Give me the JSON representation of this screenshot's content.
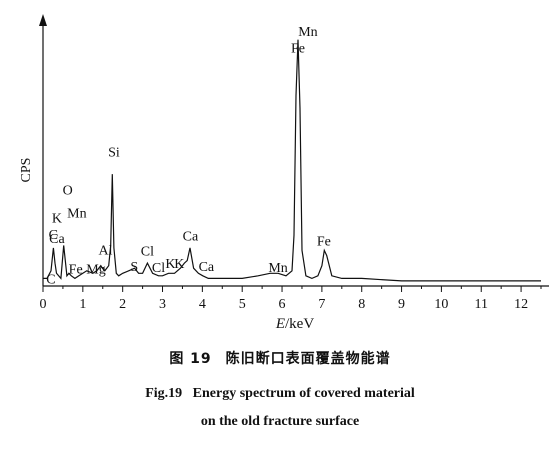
{
  "chart_data": {
    "type": "line",
    "ylabel": "CPS",
    "xlabel_italic": "E",
    "xlabel_unit": "/keV",
    "xlim": [
      0,
      12.5
    ],
    "ylim": [
      0,
      1
    ],
    "xticks": [
      0,
      1,
      2,
      3,
      4,
      5,
      6,
      7,
      8,
      9,
      10,
      11,
      12
    ],
    "grid": false,
    "series": [
      {
        "x": [
          0.0,
          0.1,
          0.2,
          0.26,
          0.3,
          0.34,
          0.45,
          0.52,
          0.56,
          0.6,
          0.65,
          0.71,
          0.8,
          0.9,
          1.0,
          1.1,
          1.25,
          1.35,
          1.45,
          1.49,
          1.55,
          1.65,
          1.7,
          1.74,
          1.78,
          1.84,
          1.9,
          2.0,
          2.15,
          2.3,
          2.4,
          2.5,
          2.62,
          2.75,
          2.9,
          3.0,
          3.15,
          3.3,
          3.45,
          3.55,
          3.62,
          3.69,
          3.78,
          3.9,
          4.01,
          4.15,
          4.3,
          4.6,
          5.0,
          5.4,
          5.7,
          5.9,
          6.1,
          6.25,
          6.3,
          6.35,
          6.4,
          6.45,
          6.5,
          6.6,
          6.75,
          6.9,
          7.0,
          7.06,
          7.12,
          7.25,
          7.5,
          8.0,
          9.0,
          10.0,
          11.0,
          12.0,
          12.5
        ],
        "values": [
          0.03,
          0.03,
          0.06,
          0.15,
          0.09,
          0.05,
          0.03,
          0.16,
          0.1,
          0.04,
          0.05,
          0.04,
          0.03,
          0.04,
          0.05,
          0.06,
          0.05,
          0.06,
          0.08,
          0.07,
          0.06,
          0.08,
          0.16,
          0.44,
          0.15,
          0.05,
          0.04,
          0.05,
          0.06,
          0.07,
          0.05,
          0.05,
          0.09,
          0.05,
          0.04,
          0.04,
          0.05,
          0.05,
          0.07,
          0.09,
          0.1,
          0.15,
          0.07,
          0.05,
          0.04,
          0.03,
          0.03,
          0.03,
          0.03,
          0.04,
          0.05,
          0.05,
          0.04,
          0.06,
          0.2,
          0.75,
          0.97,
          0.7,
          0.14,
          0.04,
          0.03,
          0.04,
          0.08,
          0.14,
          0.12,
          0.04,
          0.03,
          0.03,
          0.02,
          0.02,
          0.02,
          0.02,
          0.02
        ]
      }
    ],
    "peak_labels": [
      {
        "text": "C",
        "x": 0.26,
        "y": 0.185
      },
      {
        "text": "O",
        "x": 0.62,
        "y": 0.36
      },
      {
        "text": "K",
        "x": 0.35,
        "y": 0.25
      },
      {
        "text": "Ca",
        "x": 0.35,
        "y": 0.17
      },
      {
        "text": "C",
        "x": 0.2,
        "y": 0.01
      },
      {
        "text": "Mn",
        "x": 0.85,
        "y": 0.27
      },
      {
        "text": "Fe",
        "x": 0.82,
        "y": 0.05
      },
      {
        "text": "Mg",
        "x": 1.33,
        "y": 0.05
      },
      {
        "text": "Al",
        "x": 1.57,
        "y": 0.125
      },
      {
        "text": "Si",
        "x": 1.78,
        "y": 0.51
      },
      {
        "text": "S",
        "x": 2.29,
        "y": 0.06
      },
      {
        "text": "Cl",
        "x": 2.62,
        "y": 0.12
      },
      {
        "text": "Cl",
        "x": 2.9,
        "y": 0.055
      },
      {
        "text": "K",
        "x": 3.2,
        "y": 0.07
      },
      {
        "text": "K",
        "x": 3.42,
        "y": 0.07
      },
      {
        "text": "Ca",
        "x": 3.7,
        "y": 0.18
      },
      {
        "text": "Ca",
        "x": 4.1,
        "y": 0.06
      },
      {
        "text": "Mn",
        "x": 5.9,
        "y": 0.055
      },
      {
        "text": "Mn",
        "x": 6.65,
        "y": 0.985
      },
      {
        "text": "Fe",
        "x": 6.4,
        "y": 0.92
      },
      {
        "text": "Fe",
        "x": 7.05,
        "y": 0.16
      }
    ]
  },
  "caption": {
    "cn_number": "图 19",
    "cn_text": "陈旧断口表面覆盖物能谱",
    "en_line1": "Fig.19   Energy spectrum of covered material",
    "en_line2": "on the old fracture surface"
  }
}
